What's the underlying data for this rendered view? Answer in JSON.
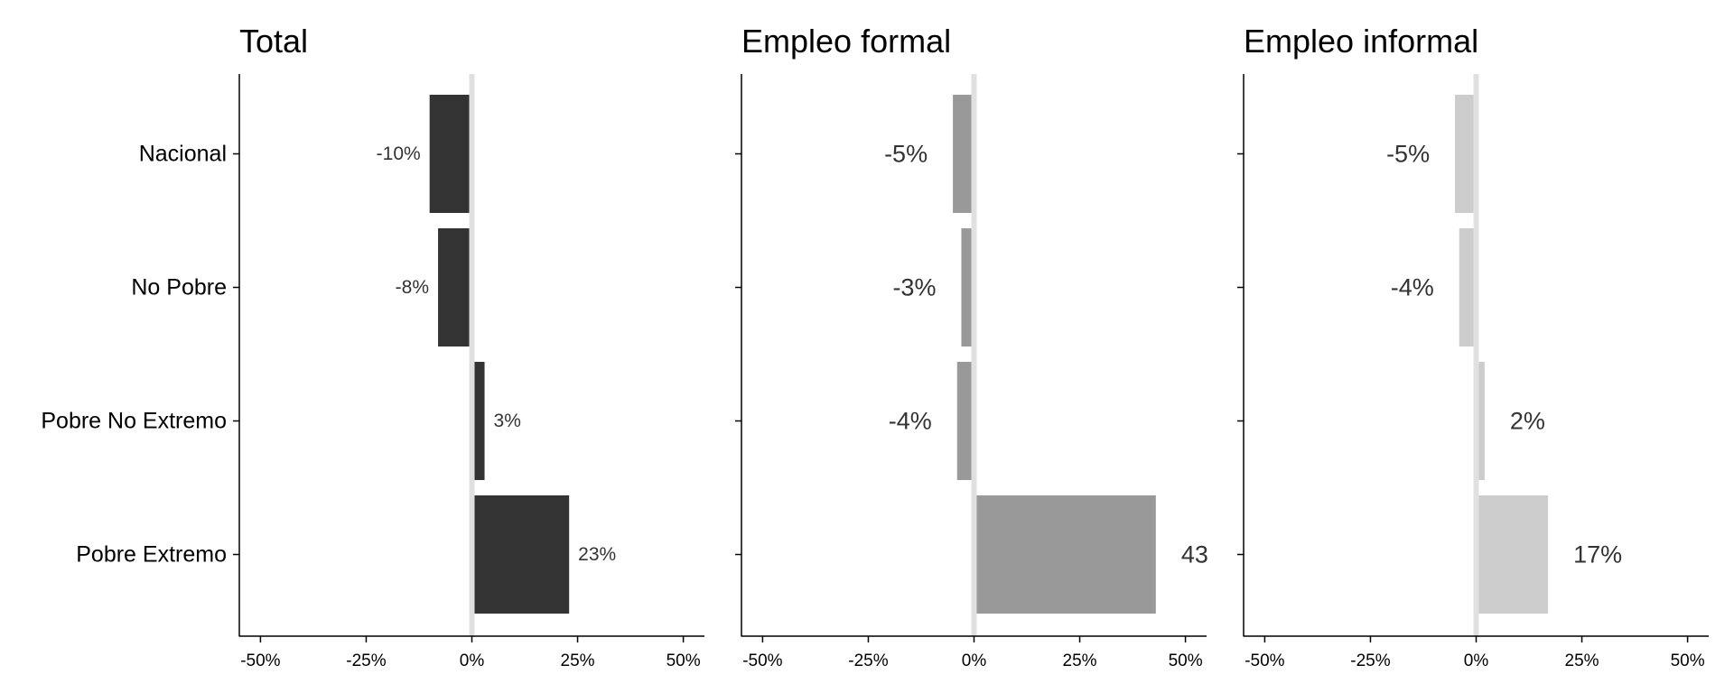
{
  "chart_data": [
    {
      "type": "bar",
      "orientation": "horizontal",
      "title": "Total",
      "categories": [
        "Nacional",
        "No Pobre",
        "Pobre No Extremo",
        "Pobre Extremo"
      ],
      "values": [
        -10,
        -8,
        3,
        23
      ],
      "data_labels": [
        "-10%",
        "-8%",
        "3%",
        "23%"
      ],
      "xlim": [
        -55,
        55
      ],
      "xticks": [
        -50,
        -25,
        0,
        25,
        50
      ],
      "xtick_labels": [
        "-50%",
        "-25%",
        "0%",
        "25%",
        "50%"
      ],
      "color": "#333333",
      "zero_line_color": "#e0e0e0",
      "grid": false
    },
    {
      "type": "bar",
      "orientation": "horizontal",
      "title": "Empleo formal",
      "categories": [
        "Nacional",
        "No Pobre",
        "Pobre No Extremo",
        "Pobre Extremo"
      ],
      "values": [
        -5,
        -3,
        -4,
        43
      ],
      "data_labels": [
        "-5%",
        "-3%",
        "-4%",
        "43"
      ],
      "xlim": [
        -55,
        55
      ],
      "xticks": [
        -50,
        -25,
        0,
        25,
        50
      ],
      "xtick_labels": [
        "-50%",
        "-25%",
        "0%",
        "25%",
        "50%"
      ],
      "color": "#999999",
      "zero_line_color": "#e0e0e0",
      "grid": false
    },
    {
      "type": "bar",
      "orientation": "horizontal",
      "title": "Empleo informal",
      "categories": [
        "Nacional",
        "No Pobre",
        "Pobre No Extremo",
        "Pobre Extremo"
      ],
      "values": [
        -5,
        -4,
        2,
        17
      ],
      "data_labels": [
        "-5%",
        "-4%",
        "2%",
        "17%"
      ],
      "xlim": [
        -55,
        55
      ],
      "xticks": [
        -50,
        -25,
        0,
        25,
        50
      ],
      "xtick_labels": [
        "-50%",
        "-25%",
        "0%",
        "25%",
        "50%"
      ],
      "color": "#cccccc",
      "zero_line_color": "#e0e0e0",
      "grid": false
    }
  ]
}
